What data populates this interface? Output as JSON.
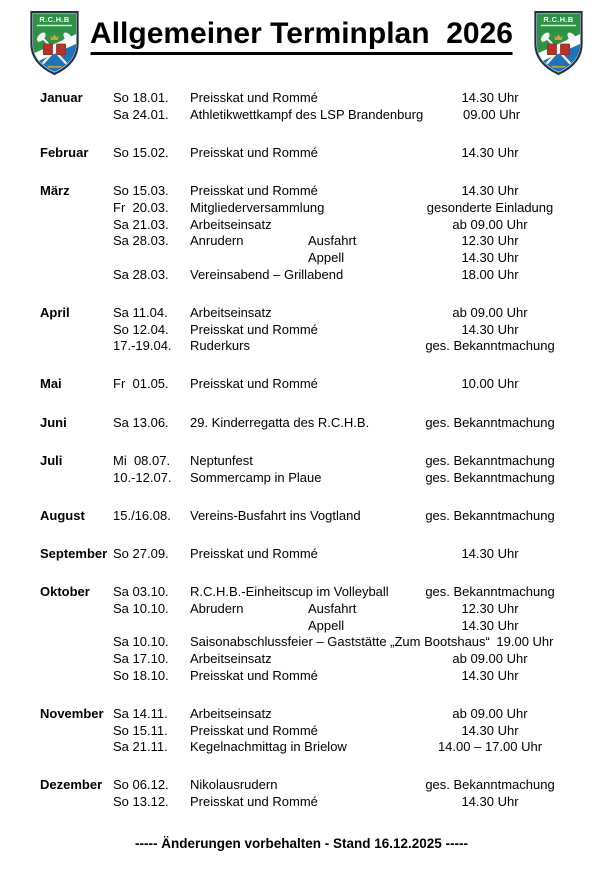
{
  "title": "Allgemeiner Terminplan  2026",
  "crest": {
    "abbr": "R.C.H.B",
    "colors": {
      "green": "#2e9245",
      "blue": "#2173b8",
      "red": "#b5342c",
      "gold": "#c9a43c",
      "outline": "#1d3244"
    }
  },
  "months": [
    {
      "name": "Januar",
      "rows": [
        {
          "date": "So 18.01.",
          "event": "Preisskat und Rommé",
          "time": "14.30 Uhr"
        },
        {
          "date": "Sa 24.01.",
          "event": "Athletikwettkampf des LSP Brandenburg",
          "time": "09.00 Uhr"
        }
      ]
    },
    {
      "name": "Februar",
      "rows": [
        {
          "date": "So 15.02.",
          "event": "Preisskat und Rommé",
          "time": "14.30 Uhr"
        }
      ]
    },
    {
      "name": "März",
      "rows": [
        {
          "date": "So 15.03.",
          "event": "Preisskat und Rommé",
          "time": "14.30 Uhr"
        },
        {
          "date": "Fr  20.03.",
          "event": "Mitgliederversammlung",
          "time": "gesonderte Einladung"
        },
        {
          "date": "Sa 21.03.",
          "event": "Arbeitseinsatz",
          "time": "ab 09.00 Uhr"
        },
        {
          "date": "Sa 28.03.",
          "event": "Anrudern",
          "sub": "Ausfahrt",
          "time": "12.30 Uhr"
        },
        {
          "date": "",
          "event": "",
          "sub": "Appell",
          "time": "14.30 Uhr"
        },
        {
          "date": "Sa 28.03.",
          "event": "Vereinsabend – Grillabend",
          "time": "18.00 Uhr"
        }
      ]
    },
    {
      "name": "April",
      "rows": [
        {
          "date": "Sa 11.04.",
          "event": "Arbeitseinsatz",
          "time": "ab 09.00 Uhr"
        },
        {
          "date": "So 12.04.",
          "event": "Preisskat und Rommé",
          "time": "14.30 Uhr"
        },
        {
          "date": "17.-19.04.",
          "event": "Ruderkurs",
          "time": "ges. Bekanntmachung"
        }
      ]
    },
    {
      "name": "Mai",
      "rows": [
        {
          "date": "Fr  01.05.",
          "event": "Preisskat und Rommé",
          "time": "10.00 Uhr"
        }
      ]
    },
    {
      "name": "Juni",
      "rows": [
        {
          "date": "Sa 13.06.",
          "event": "29. Kinderregatta des R.C.H.B.",
          "time": "ges. Bekanntmachung"
        }
      ]
    },
    {
      "name": "Juli",
      "rows": [
        {
          "date": "Mi  08.07.",
          "event": "Neptunfest",
          "time": "ges. Bekanntmachung"
        },
        {
          "date": "10.-12.07.",
          "event": "Sommercamp in Plaue",
          "time": "ges. Bekanntmachung"
        }
      ]
    },
    {
      "name": "August",
      "rows": [
        {
          "date": "15./16.08.",
          "event": "Vereins-Busfahrt ins Vogtland",
          "time": "ges. Bekanntmachung"
        }
      ]
    },
    {
      "name": "September",
      "rows": [
        {
          "date": "So 27.09.",
          "event": "Preisskat und Rommé",
          "time": "14.30 Uhr"
        }
      ]
    },
    {
      "name": "Oktober",
      "rows": [
        {
          "date": "Sa 03.10.",
          "event": "R.C.H.B.-Einheitscup im Volleyball",
          "time": "ges. Bekanntmachung"
        },
        {
          "date": "Sa 10.10.",
          "event": "Abrudern",
          "sub": "Ausfahrt",
          "time": "12.30 Uhr"
        },
        {
          "date": "",
          "event": "",
          "sub": "Appell",
          "time": "14.30 Uhr"
        },
        {
          "date": "Sa 10.10.",
          "event": "Saisonabschlussfeier – Gaststätte „Zum Bootshaus“",
          "time": "19.00 Uhr"
        },
        {
          "date": "Sa 17.10.",
          "event": "Arbeitseinsatz",
          "time": "ab 09.00 Uhr"
        },
        {
          "date": "So 18.10.",
          "event": "Preisskat und Rommé",
          "time": "14.30 Uhr"
        }
      ]
    },
    {
      "name": "November",
      "rows": [
        {
          "date": "Sa 14.11.",
          "event": "Arbeitseinsatz",
          "time": "ab 09.00 Uhr"
        },
        {
          "date": "So 15.11.",
          "event": "Preisskat und Rommé",
          "time": "14.30 Uhr"
        },
        {
          "date": "Sa 21.11.",
          "event": "Kegelnachmittag in Brielow",
          "time": "14.00 – 17.00 Uhr"
        }
      ]
    },
    {
      "name": "Dezember",
      "rows": [
        {
          "date": "So 06.12.",
          "event": "Nikolausrudern",
          "time": "ges. Bekanntmachung"
        },
        {
          "date": "So 13.12.",
          "event": "Preisskat und Rommé",
          "time": "14.30 Uhr"
        }
      ]
    }
  ],
  "footer": "----- Änderungen vorbehalten - Stand 16.12.2025 -----"
}
